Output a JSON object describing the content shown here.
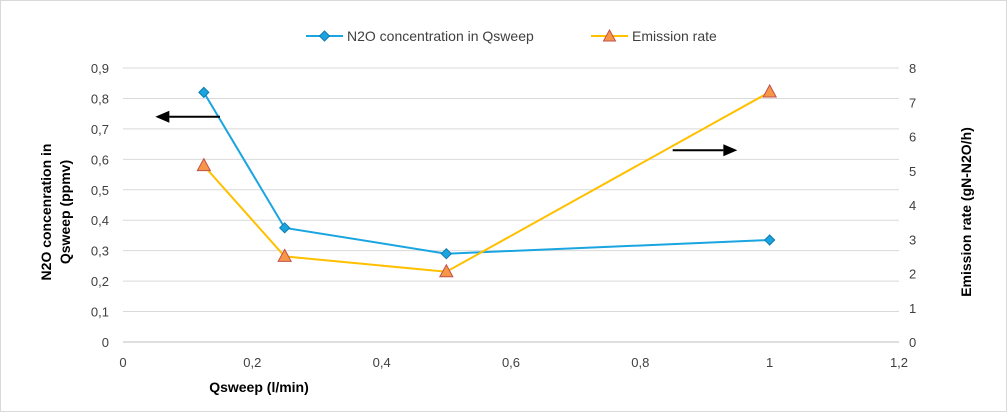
{
  "chart_data": {
    "type": "line",
    "title": "",
    "xlabel": "Qsweep (l/min)",
    "ylabel_left_lines": [
      "N2O concenration in",
      "Qsweep (ppmv)"
    ],
    "ylabel_right": "Emission rate (gN-N2O/h)",
    "xlim": [
      0,
      1.2
    ],
    "ylim_left": [
      0,
      0.9
    ],
    "ylim_right": [
      0,
      8
    ],
    "x_ticks": [
      0,
      0.2,
      0.4,
      0.6,
      0.8,
      1,
      1.2
    ],
    "x_tick_labels": [
      "0",
      "0,2",
      "0,4",
      "0,6",
      "0,8",
      "1",
      "1,2"
    ],
    "y_left_ticks": [
      0,
      0.1,
      0.2,
      0.3,
      0.4,
      0.5,
      0.6,
      0.7,
      0.8,
      0.9
    ],
    "y_left_tick_labels": [
      "0",
      "0,1",
      "0,2",
      "0,3",
      "0,4",
      "0,5",
      "0,6",
      "0,7",
      "0,8",
      "0,9"
    ],
    "y_right_ticks": [
      0,
      1,
      2,
      3,
      4,
      5,
      6,
      7,
      8
    ],
    "y_right_tick_labels": [
      "0",
      "1",
      "2",
      "3",
      "4",
      "5",
      "6",
      "7",
      "8"
    ],
    "grid": true,
    "legend_position": "top-center",
    "series": [
      {
        "name": "N2O concentration in Qsweep",
        "axis": "left",
        "color": "#1aa5e0",
        "marker": "diamond",
        "x": [
          0.125,
          0.25,
          0.5,
          1
        ],
        "values": [
          0.82,
          0.375,
          0.29,
          0.335
        ]
      },
      {
        "name": "Emission rate",
        "axis": "right",
        "color": "#ffc000",
        "marker_fill": "#f79646",
        "marker_stroke": "#c0504d",
        "marker": "triangle",
        "x": [
          0.125,
          0.25,
          0.5,
          1
        ],
        "values": [
          5.15,
          2.5,
          2.05,
          7.3
        ]
      }
    ],
    "annotations": [
      {
        "type": "arrow",
        "direction": "left",
        "x_from": 0.15,
        "x_to": 0.05,
        "y_left": 0.74
      },
      {
        "type": "arrow",
        "direction": "right",
        "x_from": 0.85,
        "x_to": 0.95,
        "y_left": 0.63
      }
    ]
  }
}
